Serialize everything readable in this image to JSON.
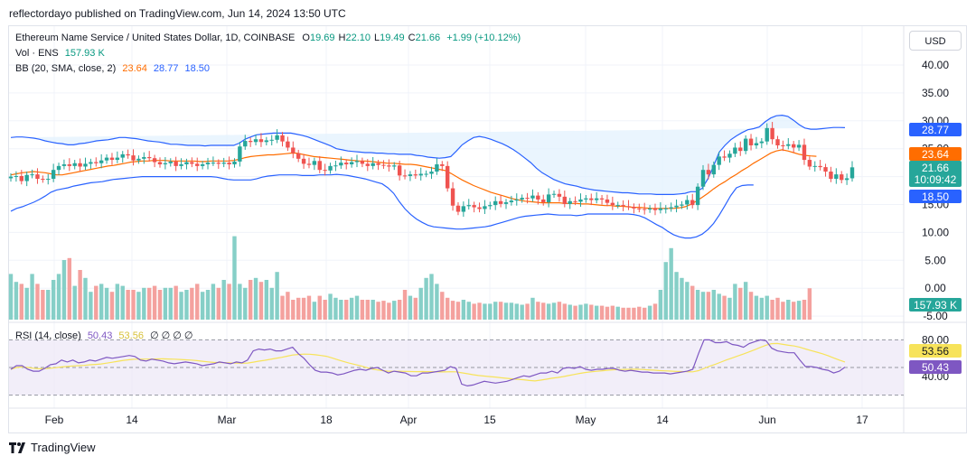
{
  "caption": "reflectordayo published on TradingView.com, Jun 14, 2024 13:50 UTC",
  "brand": "TradingView",
  "brand_logo": "tv-logo",
  "currency_button": "USD",
  "legend": {
    "title": "Ethereum Name Service / United States Dollar, 1D, COINBASE",
    "ohlc": [
      {
        "k": "O",
        "v": "19.69"
      },
      {
        "k": "H",
        "v": "22.10"
      },
      {
        "k": "L",
        "v": "19.49"
      },
      {
        "k": "C",
        "v": "21.66"
      }
    ],
    "change": "+1.99 (+10.12%)",
    "volume_label": "Vol · ENS",
    "volume_value": "157.93 K",
    "bb_label": "BB (20, SMA, close, 2)",
    "bb_mid": "23.64",
    "bb_upper": "28.77",
    "bb_lower": "18.50",
    "rsi_label": "RSI (14, close)",
    "rsi_value": "50.43",
    "rsi_ma": "53.56",
    "rsi_extra": "∅  ∅  ∅  ∅"
  },
  "colors": {
    "up": "#26a69a",
    "down": "#ef5350",
    "vol_up": "#86cfc7",
    "vol_down": "#f4a19e",
    "bb_band": "#2962ff",
    "bb_mid": "#ff6d00",
    "bb_fill": "#e3f2fd",
    "rsi_line": "#7e57c2",
    "rsi_ma": "#f7e35a",
    "rsi_fill": "#ede7f6"
  },
  "chart_data": {
    "type": "candlestick",
    "symbol": "ENS/USD",
    "interval": "1D",
    "price_axis_ticks": [
      "40.00",
      "35.00",
      "30.00",
      "25.00",
      "20.00",
      "15.00",
      "10.00",
      "5.00",
      "0.00",
      "-5.00"
    ],
    "rsi_axis_ticks": [
      "80.00",
      "40.00"
    ],
    "time_axis_labels": [
      "Feb",
      "14",
      "Mar",
      "18",
      "Apr",
      "15",
      "May",
      "14",
      "Jun",
      "17"
    ],
    "price_badges": [
      {
        "value": "28.77",
        "kind": "bb_upper"
      },
      {
        "value": "23.64",
        "kind": "bb_mid"
      },
      {
        "value": "21.66",
        "sub": "10:09:42",
        "kind": "last"
      },
      {
        "value": "18.50",
        "kind": "bb_lower"
      }
    ],
    "volume_badge": "157.93 K",
    "rsi_badges": [
      {
        "value": "53.56",
        "kind": "rsi_ma"
      },
      {
        "value": "50.43",
        "kind": "rsi"
      }
    ],
    "close": [
      20.0,
      20.1,
      19.2,
      20.3,
      20.4,
      19.6,
      19.5,
      19.6,
      21.2,
      21.9,
      22.2,
      21.9,
      22.4,
      21.8,
      22.3,
      22.6,
      22.4,
      22.9,
      23.4,
      23.0,
      23.4,
      24.0,
      23.8,
      22.9,
      23.2,
      23.5,
      23.3,
      22.6,
      22.2,
      22.4,
      22.7,
      21.9,
      22.2,
      22.6,
      22.3,
      21.9,
      22.2,
      22.5,
      22.5,
      22.3,
      22.5,
      22.2,
      22.7,
      25.4,
      26.4,
      26.2,
      26.7,
      26.2,
      26.5,
      26.6,
      27.4,
      26.3,
      25.2,
      24.2,
      23.2,
      22.3,
      22.1,
      22.8,
      21.2,
      21.1,
      21.9,
      22.0,
      22.5,
      22.2,
      22.6,
      22.8,
      22.3,
      21.9,
      22.4,
      22.1,
      22.0,
      21.8,
      22.0,
      20.2,
      20.1,
      20.4,
      20.2,
      20.5,
      20.5,
      20.9,
      22.2,
      21.9,
      17.9,
      14.8,
      13.7,
      14.7,
      14.9,
      14.5,
      14.2,
      14.7,
      14.9,
      15.6,
      15.1,
      15.4,
      15.7,
      15.9,
      16.2,
      16.1,
      16.6,
      15.9,
      15.4,
      16.8,
      16.9,
      16.4,
      15.1,
      15.6,
      15.5,
      15.9,
      16.1,
      15.8,
      16.1,
      15.9,
      15.3,
      14.9,
      14.9,
      14.7,
      14.6,
      14.3,
      14.2,
      14.1,
      14.3,
      14.0,
      14.3,
      14.3,
      14.5,
      14.8,
      15.0,
      15.8,
      14.9,
      18.2,
      21.2,
      20.4,
      22.1,
      23.6,
      23.4,
      24.1,
      25.2,
      24.6,
      26.8,
      25.6,
      26.0,
      26.3,
      28.7,
      26.7,
      25.6,
      25.5,
      25.8,
      25.2,
      25.7,
      23.0,
      21.8,
      21.9,
      21.7,
      20.9,
      19.6,
      20.4,
      19.4,
      19.7,
      21.66
    ],
    "bb_upper_approx": [
      27.0,
      27.1,
      27.1,
      27.0,
      26.9,
      26.7,
      26.4,
      26.2,
      26.0,
      25.9,
      25.7,
      25.7,
      25.9,
      26.0,
      26.2,
      26.4,
      26.5,
      26.6,
      26.8,
      27.0,
      27.0,
      26.9,
      26.8,
      26.6,
      26.4,
      26.3,
      26.2,
      26.0,
      25.8,
      25.8,
      25.7,
      25.6,
      25.6,
      25.6,
      25.5,
      25.6,
      25.6,
      25.6,
      25.6,
      25.6,
      26.0,
      26.7,
      27.1,
      27.5,
      27.6,
      27.7,
      27.8,
      27.8,
      27.8,
      27.8,
      27.6,
      27.4,
      27.1,
      26.7,
      26.3,
      25.9,
      25.5,
      25.0,
      24.8,
      24.6,
      24.5,
      24.4,
      24.3,
      24.3,
      24.2,
      24.2,
      24.1,
      24.1,
      24.0,
      24.0,
      24.0,
      23.8,
      23.7,
      23.5,
      23.4,
      23.3,
      23.4,
      23.6,
      24.6,
      25.7,
      26.4,
      27.0,
      27.2,
      27.0,
      26.7,
      26.3,
      25.9,
      25.4,
      24.8,
      24.1,
      23.3,
      22.5,
      21.5,
      20.7,
      20.1,
      19.5,
      19.1,
      18.7,
      18.5,
      18.3,
      18.0,
      17.8,
      17.6,
      17.5,
      17.4,
      17.3,
      17.2,
      17.1,
      17.1,
      17.0,
      16.9,
      16.9,
      16.9,
      16.8,
      16.8,
      16.8,
      16.8,
      16.9,
      17.0,
      17.3,
      17.3,
      17.9,
      19.6,
      21.9,
      24.4,
      25.6,
      26.6,
      27.3,
      27.9,
      28.4,
      28.6,
      28.9,
      29.8,
      30.5,
      30.9,
      31.0,
      30.8,
      30.1,
      29.3,
      28.7,
      28.5,
      28.5,
      28.6,
      28.7,
      28.8,
      28.8,
      28.77
    ],
    "bb_mid_approx": [
      20.3,
      20.5,
      20.7,
      20.8,
      20.9,
      20.8,
      20.7,
      20.5,
      20.3,
      20.3,
      20.5,
      20.7,
      20.9,
      21.1,
      21.3,
      21.5,
      21.7,
      21.9,
      22.0,
      22.2,
      22.4,
      22.6,
      22.7,
      22.8,
      22.8,
      22.9,
      22.9,
      22.9,
      22.8,
      22.8,
      22.8,
      22.8,
      22.8,
      22.7,
      22.7,
      22.8,
      22.8,
      22.8,
      22.8,
      22.9,
      23.1,
      23.4,
      23.6,
      23.7,
      23.8,
      23.9,
      23.9,
      24.0,
      24.1,
      24.2,
      24.2,
      24.0,
      23.8,
      23.6,
      23.5,
      23.4,
      23.3,
      23.2,
      23.1,
      23.0,
      22.9,
      22.8,
      22.8,
      22.7,
      22.6,
      22.5,
      22.4,
      22.4,
      22.3,
      22.2,
      22.2,
      22.1,
      21.9,
      21.7,
      21.5,
      21.3,
      21.1,
      20.6,
      20.0,
      19.4,
      18.9,
      18.4,
      18.0,
      17.6,
      17.2,
      16.9,
      16.6,
      16.3,
      16.0,
      15.8,
      15.6,
      15.5,
      15.4,
      15.3,
      15.3,
      15.3,
      15.3,
      15.2,
      15.2,
      15.2,
      15.1,
      15.1,
      15.0,
      14.9,
      14.8,
      14.8,
      14.7,
      14.7,
      14.6,
      14.5,
      14.5,
      14.4,
      14.3,
      14.3,
      14.3,
      14.3,
      14.3,
      14.4,
      14.6,
      15.0,
      15.6,
      16.3,
      17.0,
      17.8,
      18.5,
      19.1,
      19.8,
      20.4,
      21.1,
      21.7,
      22.4,
      23.0,
      23.6,
      24.2,
      24.6,
      24.8,
      24.6,
      24.3,
      24.0,
      23.8,
      23.7,
      23.64
    ],
    "bb_lower_approx": [
      13.8,
      14.3,
      14.6,
      15.0,
      15.4,
      15.9,
      16.5,
      17.2,
      17.6,
      17.8,
      18.0,
      18.3,
      18.5,
      18.7,
      18.9,
      19.0,
      19.1,
      19.3,
      19.5,
      19.6,
      19.7,
      19.8,
      19.9,
      20.0,
      20.0,
      20.0,
      20.0,
      20.0,
      20.0,
      20.0,
      20.0,
      20.0,
      20.0,
      20.0,
      20.0,
      20.0,
      19.9,
      19.7,
      19.5,
      19.4,
      19.4,
      19.4,
      19.4,
      19.6,
      19.9,
      20.1,
      20.2,
      20.3,
      20.3,
      20.3,
      20.3,
      20.2,
      20.2,
      20.2,
      20.3,
      20.3,
      20.3,
      20.4,
      20.3,
      20.2,
      20.0,
      19.8,
      19.6,
      19.3,
      19.0,
      18.7,
      18.0,
      17.0,
      15.5,
      14.2,
      13.2,
      12.4,
      11.8,
      11.3,
      11.0,
      10.9,
      10.8,
      10.7,
      10.6,
      10.6,
      10.7,
      10.8,
      10.9,
      11.0,
      11.2,
      11.5,
      11.8,
      12.1,
      12.4,
      12.7,
      12.9,
      13.0,
      13.1,
      13.2,
      13.3,
      13.2,
      13.1,
      13.1,
      13.1,
      13.0,
      13.1,
      13.3,
      13.3,
      13.3,
      13.3,
      13.3,
      13.3,
      13.3,
      13.3,
      13.2,
      13.0,
      12.6,
      12.0,
      11.4,
      10.9,
      10.2,
      9.6,
      9.2,
      9.0,
      9.0,
      9.2,
      9.7,
      10.5,
      11.6,
      13.1,
      14.8,
      16.6,
      18.0,
      18.4,
      18.5,
      18.5
    ],
    "volume_approx_k": [
      230,
      190,
      180,
      160,
      230,
      180,
      150,
      150,
      200,
      230,
      300,
      310,
      170,
      250,
      210,
      140,
      170,
      180,
      160,
      140,
      180,
      170,
      150,
      150,
      140,
      160,
      160,
      170,
      150,
      160,
      160,
      170,
      140,
      150,
      160,
      180,
      140,
      150,
      180,
      160,
      200,
      180,
      420,
      180,
      160,
      200,
      210,
      190,
      200,
      160,
      240,
      120,
      140,
      100,
      110,
      110,
      120,
      90,
      120,
      100,
      130,
      110,
      100,
      100,
      110,
      120,
      100,
      100,
      100,
      90,
      95,
      85,
      95,
      100,
      150,
      120,
      110,
      160,
      210,
      230,
      180,
      140,
      110,
      95,
      90,
      100,
      90,
      80,
      85,
      80,
      80,
      90,
      90,
      85,
      85,
      80,
      75,
      80,
      110,
      90,
      85,
      80,
      85,
      90,
      80,
      75,
      70,
      75,
      80,
      75,
      70,
      70,
      65,
      70,
      65,
      60,
      60,
      60,
      65,
      60,
      70,
      80,
      150,
      290,
      360,
      240,
      210,
      190,
      170,
      150,
      140,
      140,
      150,
      130,
      120,
      110,
      180,
      160,
      190,
      140,
      120,
      110,
      120,
      100,
      110,
      90,
      100,
      90,
      95,
      100,
      157.93
    ],
    "rsi_approx": [
      48,
      52,
      52,
      48,
      46,
      46,
      49,
      53,
      54,
      58,
      56,
      58,
      55,
      56,
      58,
      57,
      59,
      61,
      60,
      61,
      62,
      63,
      62,
      58,
      57,
      59,
      58,
      57,
      55,
      54,
      55,
      56,
      55,
      54,
      52,
      53,
      54,
      56,
      55,
      54,
      56,
      55,
      58,
      68,
      70,
      69,
      70,
      68,
      68,
      70,
      72,
      65,
      60,
      53,
      47,
      45,
      45,
      44,
      42,
      43,
      45,
      47,
      48,
      47,
      49,
      50,
      47,
      44,
      46,
      45,
      44,
      41,
      41,
      44,
      44,
      45,
      46,
      47,
      51,
      49,
      32,
      30,
      31,
      33,
      35,
      34,
      33,
      34,
      35,
      37,
      39,
      41,
      40,
      42,
      44,
      44,
      46,
      44,
      49,
      50,
      49,
      51,
      48,
      47,
      48,
      48,
      49,
      49,
      47,
      46,
      47,
      46,
      45,
      45,
      44,
      44,
      44,
      43,
      44,
      45,
      46,
      48,
      65,
      80,
      80,
      77,
      77,
      78,
      75,
      74,
      72,
      76,
      78,
      80,
      79,
      71,
      68,
      67,
      66,
      66,
      58,
      51,
      51,
      50,
      48,
      47,
      44,
      46,
      50.43
    ]
  }
}
